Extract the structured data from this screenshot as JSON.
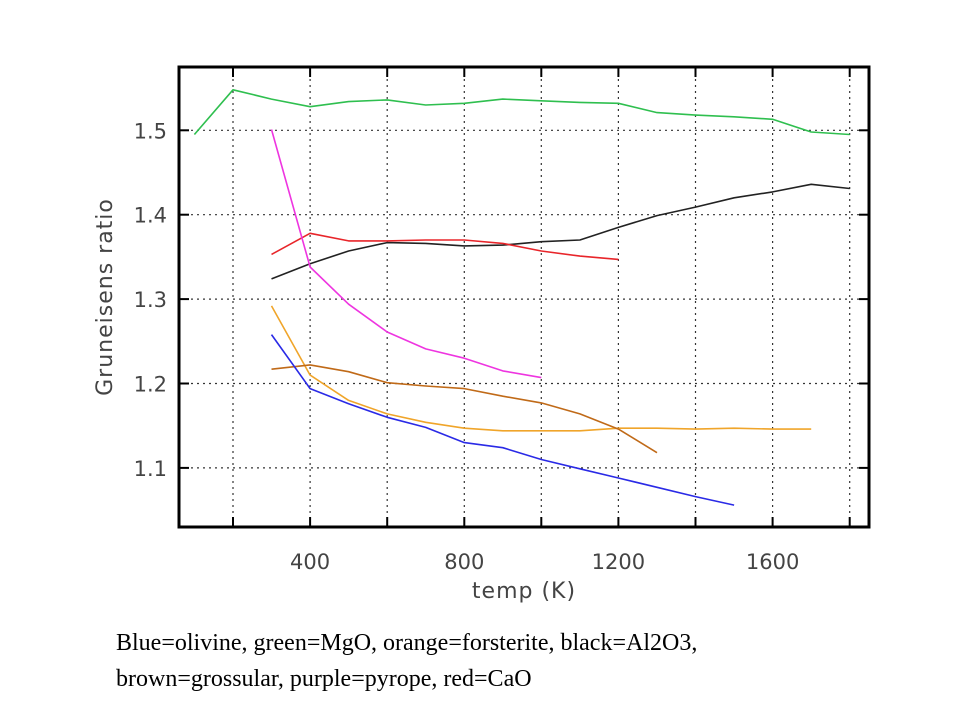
{
  "chart_data": {
    "type": "line",
    "xlabel": "temp (K)",
    "ylabel": "Gruneisens ratio",
    "xlim": [
      60,
      1850
    ],
    "ylim": [
      1.03,
      1.575
    ],
    "x_ticks": [
      400,
      800,
      1200,
      1600
    ],
    "x_minor_ticks": [
      200,
      600,
      1000,
      1400,
      1800
    ],
    "y_ticks": [
      1.1,
      1.2,
      1.3,
      1.4,
      1.5
    ],
    "grid": true,
    "series": [
      {
        "name": "green=MgO",
        "color": "#2fbf4f",
        "x": [
          100,
          200,
          300,
          400,
          500,
          600,
          700,
          800,
          900,
          1000,
          1100,
          1200,
          1300,
          1400,
          1500,
          1600,
          1700,
          1800
        ],
        "y": [
          1.495,
          1.548,
          1.537,
          1.528,
          1.534,
          1.536,
          1.53,
          1.532,
          1.537,
          1.535,
          1.533,
          1.532,
          1.521,
          1.518,
          1.516,
          1.513,
          1.498,
          1.495
        ]
      },
      {
        "name": "black=Al2O3",
        "color": "#222222",
        "x": [
          300,
          400,
          500,
          600,
          700,
          800,
          900,
          1000,
          1100,
          1200,
          1300,
          1400,
          1500,
          1600,
          1700,
          1800
        ],
        "y": [
          1.324,
          1.342,
          1.357,
          1.367,
          1.366,
          1.363,
          1.364,
          1.368,
          1.37,
          1.385,
          1.399,
          1.409,
          1.42,
          1.427,
          1.436,
          1.431
        ]
      },
      {
        "name": "red=CaO",
        "color": "#e8252a",
        "x": [
          300,
          400,
          500,
          600,
          700,
          800,
          900,
          1000,
          1100,
          1200
        ],
        "y": [
          1.353,
          1.378,
          1.369,
          1.369,
          1.37,
          1.37,
          1.366,
          1.357,
          1.351,
          1.347
        ]
      },
      {
        "name": "purple=pyrope",
        "color": "#ee35e0",
        "x": [
          300,
          400,
          500,
          600,
          700,
          800,
          900,
          1000
        ],
        "y": [
          1.501,
          1.338,
          1.294,
          1.261,
          1.241,
          1.23,
          1.215,
          1.207
        ]
      },
      {
        "name": "orange=forsterite",
        "color": "#f0a52a",
        "x": [
          300,
          400,
          500,
          600,
          700,
          800,
          900,
          1000,
          1100,
          1200,
          1300,
          1400,
          1500,
          1600,
          1700
        ],
        "y": [
          1.292,
          1.21,
          1.18,
          1.164,
          1.154,
          1.147,
          1.144,
          1.144,
          1.144,
          1.147,
          1.147,
          1.146,
          1.147,
          1.146,
          1.146
        ]
      },
      {
        "name": "brown=grossular",
        "color": "#c06a18",
        "x": [
          300,
          400,
          500,
          600,
          700,
          800,
          900,
          1000,
          1100,
          1200,
          1300
        ],
        "y": [
          1.217,
          1.222,
          1.214,
          1.201,
          1.197,
          1.194,
          1.185,
          1.177,
          1.164,
          1.146,
          1.118
        ]
      },
      {
        "name": "Blue=olivine",
        "color": "#2a2ae6",
        "x": [
          300,
          400,
          500,
          600,
          700,
          800,
          900,
          1000,
          1100,
          1200,
          1300,
          1400,
          1500
        ],
        "y": [
          1.258,
          1.194,
          1.176,
          1.16,
          1.148,
          1.13,
          1.124,
          1.11,
          1.099,
          1.088,
          1.077,
          1.066,
          1.056
        ]
      }
    ]
  },
  "caption": {
    "line1": "Blue=olivine, green=MgO, orange=forsterite, black=Al2O3,",
    "line2": "brown=grossular, purple=pyrope, red=CaO"
  }
}
